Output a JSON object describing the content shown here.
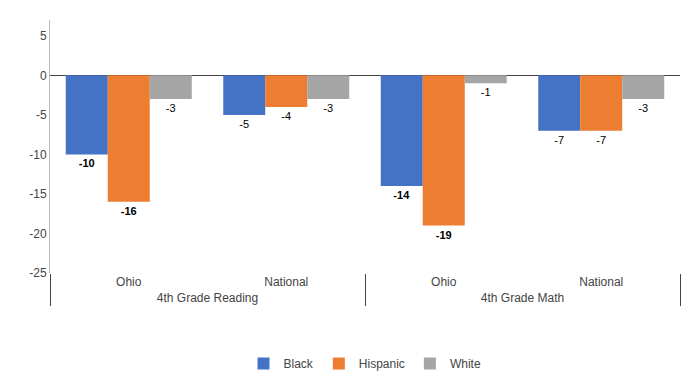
{
  "chart_data": {
    "type": "bar",
    "categories": [
      "Ohio",
      "National",
      "Ohio",
      "National"
    ],
    "category_sections": [
      "4th Grade Reading",
      "4th Grade Reading",
      "4th Grade Math",
      "4th Grade Math"
    ],
    "series": [
      {
        "name": "Black",
        "color": "#4472c4",
        "values": [
          -10,
          -5,
          -14,
          -7
        ]
      },
      {
        "name": "Hispanic",
        "color": "#ed7d31",
        "values": [
          -16,
          -4,
          -19,
          -7
        ]
      },
      {
        "name": "White",
        "color": "#a5a5a5",
        "values": [
          -3,
          -3,
          -1,
          -3
        ]
      }
    ],
    "ylim": [
      -25,
      7
    ],
    "yticks": [
      5,
      0,
      -5,
      -10,
      -15,
      -20,
      -25
    ],
    "grid": false,
    "legend": "bottom",
    "data_labels": true
  }
}
